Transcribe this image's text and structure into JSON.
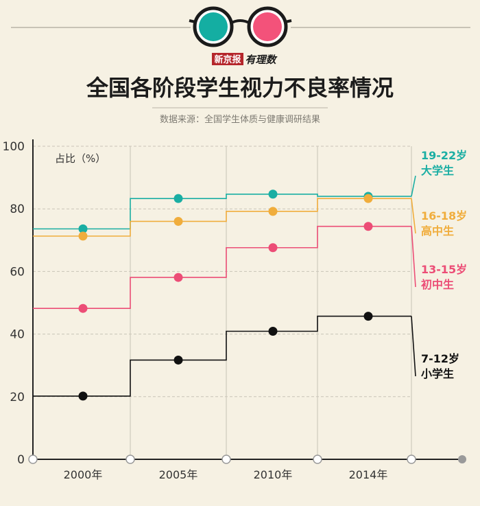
{
  "header": {
    "brand_name": "新京报",
    "brand_column": "有理数",
    "lens_left_color": "#14aea2",
    "lens_right_color": "#f3527a"
  },
  "title": "全国各阶段学生视力不良率情况",
  "source": "数据来源：全国学生体质与健康调研结果",
  "chart_data": {
    "type": "line",
    "style": "step",
    "categories": [
      "2000年",
      "2005年",
      "2010年",
      "2014年"
    ],
    "ylabel": "占比（%）",
    "ylim": [
      0,
      100
    ],
    "yticks": [
      0,
      20,
      40,
      60,
      80,
      100
    ],
    "grid": true,
    "series": [
      {
        "name": "19-22岁",
        "name2": "大学生",
        "color": "#1aaea3",
        "values": [
          73.6,
          83.3,
          84.7,
          84.0
        ]
      },
      {
        "name": "16-18岁",
        "name2": "高中生",
        "color": "#f0ad3c",
        "values": [
          71.3,
          76.0,
          79.2,
          83.3
        ]
      },
      {
        "name": "13-15岁",
        "name2": "初中生",
        "color": "#ec4d76",
        "values": [
          48.2,
          58.1,
          67.6,
          74.4
        ]
      },
      {
        "name": "7-12岁",
        "name2": "小学生",
        "color": "#111111",
        "values": [
          20.2,
          31.7,
          40.9,
          45.7
        ]
      }
    ]
  }
}
